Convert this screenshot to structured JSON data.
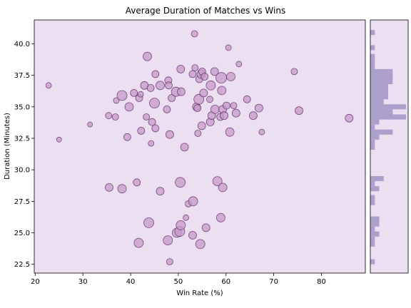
{
  "chart_data": {
    "type": "scatter",
    "title": "Average Duration of Matches vs Wins",
    "xlabel": "Win Rate (%)",
    "ylabel": "Duration (Minutes)",
    "xlim": [
      19.8,
      89.2
    ],
    "ylim": [
      21.8,
      41.9
    ],
    "xticks": [
      "20",
      "30",
      "40",
      "50",
      "60",
      "70",
      "80"
    ],
    "yticks": [
      "22.5",
      "25.0",
      "27.5",
      "30.0",
      "32.5",
      "35.0",
      "37.5",
      "40.0"
    ],
    "grid": false,
    "colors": {
      "background": "#ecdff1",
      "point_fill": "#c79ac9",
      "point_stroke": "#5a2a5e",
      "histogram": "#ab9fcc"
    },
    "marginal_histogram": {
      "orientation": "horizontal",
      "axis": "y",
      "bins": [
        {
          "y0": 22.5,
          "y1": 22.9,
          "count": 1
        },
        {
          "y0": 23.9,
          "y1": 24.3,
          "count": 1
        },
        {
          "y0": 24.3,
          "y1": 24.7,
          "count": 1
        },
        {
          "y0": 24.7,
          "y1": 25.1,
          "count": 2
        },
        {
          "y0": 25.1,
          "y1": 25.5,
          "count": 1
        },
        {
          "y0": 25.5,
          "y1": 25.9,
          "count": 2
        },
        {
          "y0": 25.9,
          "y1": 26.3,
          "count": 2
        },
        {
          "y0": 27.2,
          "y1": 27.6,
          "count": 1
        },
        {
          "y0": 27.6,
          "y1": 28.0,
          "count": 1
        },
        {
          "y0": 28.3,
          "y1": 28.7,
          "count": 2
        },
        {
          "y0": 28.7,
          "y1": 29.1,
          "count": 1
        },
        {
          "y0": 29.1,
          "y1": 29.5,
          "count": 3
        },
        {
          "y0": 31.6,
          "y1": 32.0,
          "count": 1
        },
        {
          "y0": 32.0,
          "y1": 32.4,
          "count": 1
        },
        {
          "y0": 32.4,
          "y1": 32.8,
          "count": 2
        },
        {
          "y0": 32.8,
          "y1": 33.2,
          "count": 5
        },
        {
          "y0": 33.2,
          "y1": 33.6,
          "count": 1
        },
        {
          "y0": 33.6,
          "y1": 34.0,
          "count": 2
        },
        {
          "y0": 34.0,
          "y1": 34.4,
          "count": 8
        },
        {
          "y0": 34.4,
          "y1": 34.8,
          "count": 5
        },
        {
          "y0": 34.8,
          "y1": 35.2,
          "count": 8
        },
        {
          "y0": 35.2,
          "y1": 35.6,
          "count": 3
        },
        {
          "y0": 35.6,
          "y1": 36.0,
          "count": 4
        },
        {
          "y0": 36.0,
          "y1": 36.4,
          "count": 4
        },
        {
          "y0": 36.4,
          "y1": 36.8,
          "count": 4
        },
        {
          "y0": 36.8,
          "y1": 37.2,
          "count": 5
        },
        {
          "y0": 37.2,
          "y1": 37.6,
          "count": 5
        },
        {
          "y0": 37.6,
          "y1": 38.0,
          "count": 5
        },
        {
          "y0": 38.0,
          "y1": 38.4,
          "count": 1
        },
        {
          "y0": 38.4,
          "y1": 38.8,
          "count": 1
        },
        {
          "y0": 38.8,
          "y1": 39.2,
          "count": 1
        },
        {
          "y0": 39.5,
          "y1": 39.9,
          "count": 1
        },
        {
          "y0": 40.7,
          "y1": 41.1,
          "count": 1
        }
      ]
    },
    "points": [
      {
        "x": 22.8,
        "y": 36.7,
        "r": 4
      },
      {
        "x": 25.0,
        "y": 32.4,
        "r": 3.5
      },
      {
        "x": 31.5,
        "y": 33.6,
        "r": 3.5
      },
      {
        "x": 35.4,
        "y": 34.3,
        "r": 4.5
      },
      {
        "x": 36.8,
        "y": 34.2,
        "r": 4.5
      },
      {
        "x": 37.0,
        "y": 35.5,
        "r": 4
      },
      {
        "x": 38.2,
        "y": 35.9,
        "r": 7
      },
      {
        "x": 39.3,
        "y": 32.6,
        "r": 5
      },
      {
        "x": 39.7,
        "y": 35.0,
        "r": 6
      },
      {
        "x": 40.7,
        "y": 36.1,
        "r": 5
      },
      {
        "x": 41.8,
        "y": 35.7,
        "r": 5
      },
      {
        "x": 42.1,
        "y": 36.0,
        "r": 4
      },
      {
        "x": 42.2,
        "y": 33.1,
        "r": 5
      },
      {
        "x": 42.9,
        "y": 36.7,
        "r": 5.5
      },
      {
        "x": 43.3,
        "y": 34.2,
        "r": 4.5
      },
      {
        "x": 43.5,
        "y": 39.0,
        "r": 6
      },
      {
        "x": 44.2,
        "y": 36.5,
        "r": 5
      },
      {
        "x": 44.3,
        "y": 32.1,
        "r": 4
      },
      {
        "x": 44.5,
        "y": 33.8,
        "r": 5
      },
      {
        "x": 45.0,
        "y": 35.3,
        "r": 7
      },
      {
        "x": 45.2,
        "y": 33.3,
        "r": 5
      },
      {
        "x": 45.2,
        "y": 37.6,
        "r": 5
      },
      {
        "x": 46.2,
        "y": 36.7,
        "r": 6
      },
      {
        "x": 47.6,
        "y": 34.8,
        "r": 5
      },
      {
        "x": 47.9,
        "y": 37.1,
        "r": 5
      },
      {
        "x": 48.0,
        "y": 36.7,
        "r": 5
      },
      {
        "x": 48.2,
        "y": 32.8,
        "r": 5.5
      },
      {
        "x": 48.6,
        "y": 35.7,
        "r": 5
      },
      {
        "x": 49.5,
        "y": 36.2,
        "r": 6.5
      },
      {
        "x": 50.5,
        "y": 38.0,
        "r": 5.5
      },
      {
        "x": 50.6,
        "y": 36.2,
        "r": 5.5
      },
      {
        "x": 51.3,
        "y": 31.8,
        "r": 5.5
      },
      {
        "x": 53.0,
        "y": 37.6,
        "r": 5
      },
      {
        "x": 53.4,
        "y": 40.8,
        "r": 4.5
      },
      {
        "x": 53.5,
        "y": 38.1,
        "r": 4.5
      },
      {
        "x": 53.8,
        "y": 35.0,
        "r": 5.5
      },
      {
        "x": 54.0,
        "y": 34.9,
        "r": 5
      },
      {
        "x": 54.1,
        "y": 32.9,
        "r": 4.5
      },
      {
        "x": 54.3,
        "y": 35.6,
        "r": 7
      },
      {
        "x": 54.4,
        "y": 37.2,
        "r": 5
      },
      {
        "x": 54.8,
        "y": 37.6,
        "r": 6
      },
      {
        "x": 54.9,
        "y": 33.5,
        "r": 5.5
      },
      {
        "x": 55.0,
        "y": 37.8,
        "r": 5
      },
      {
        "x": 55.3,
        "y": 36.1,
        "r": 5.5
      },
      {
        "x": 55.5,
        "y": 37.4,
        "r": 5
      },
      {
        "x": 56.6,
        "y": 35.6,
        "r": 4.5
      },
      {
        "x": 56.7,
        "y": 33.8,
        "r": 5.5
      },
      {
        "x": 56.8,
        "y": 36.7,
        "r": 6.5
      },
      {
        "x": 57.0,
        "y": 34.3,
        "r": 5.5
      },
      {
        "x": 57.6,
        "y": 37.8,
        "r": 5.5
      },
      {
        "x": 57.7,
        "y": 34.8,
        "r": 6
      },
      {
        "x": 58.8,
        "y": 34.2,
        "r": 5
      },
      {
        "x": 59.0,
        "y": 37.3,
        "r": 7.5
      },
      {
        "x": 59.1,
        "y": 36.3,
        "r": 6
      },
      {
        "x": 59.3,
        "y": 34.8,
        "r": 5.5
      },
      {
        "x": 59.6,
        "y": 34.3,
        "r": 5.5
      },
      {
        "x": 60.1,
        "y": 35.1,
        "r": 5
      },
      {
        "x": 60.5,
        "y": 39.7,
        "r": 4
      },
      {
        "x": 60.8,
        "y": 33.0,
        "r": 6
      },
      {
        "x": 61.0,
        "y": 37.4,
        "r": 6
      },
      {
        "x": 61.6,
        "y": 35.1,
        "r": 4.5
      },
      {
        "x": 62.1,
        "y": 34.5,
        "r": 5.5
      },
      {
        "x": 62.7,
        "y": 38.4,
        "r": 4
      },
      {
        "x": 64.4,
        "y": 35.6,
        "r": 5
      },
      {
        "x": 65.7,
        "y": 34.3,
        "r": 5.5
      },
      {
        "x": 66.9,
        "y": 34.9,
        "r": 5.5
      },
      {
        "x": 67.5,
        "y": 33.0,
        "r": 4
      },
      {
        "x": 74.3,
        "y": 37.8,
        "r": 4.5
      },
      {
        "x": 75.3,
        "y": 34.7,
        "r": 5.5
      },
      {
        "x": 85.8,
        "y": 34.1,
        "r": 5.5
      },
      {
        "x": 35.5,
        "y": 28.6,
        "r": 5.5
      },
      {
        "x": 38.2,
        "y": 28.5,
        "r": 6
      },
      {
        "x": 41.3,
        "y": 29.0,
        "r": 5
      },
      {
        "x": 41.7,
        "y": 24.2,
        "r": 6.5
      },
      {
        "x": 43.8,
        "y": 25.8,
        "r": 7
      },
      {
        "x": 46.2,
        "y": 28.3,
        "r": 5.5
      },
      {
        "x": 47.8,
        "y": 24.4,
        "r": 6.5
      },
      {
        "x": 48.2,
        "y": 22.7,
        "r": 4.5
      },
      {
        "x": 49.7,
        "y": 25.0,
        "r": 6.5
      },
      {
        "x": 50.3,
        "y": 25.1,
        "r": 7
      },
      {
        "x": 50.4,
        "y": 29.0,
        "r": 7
      },
      {
        "x": 50.5,
        "y": 25.6,
        "r": 6.5
      },
      {
        "x": 51.6,
        "y": 26.2,
        "r": 4
      },
      {
        "x": 52.1,
        "y": 27.3,
        "r": 4.5
      },
      {
        "x": 53.0,
        "y": 24.8,
        "r": 5.5
      },
      {
        "x": 53.1,
        "y": 27.5,
        "r": 6.5
      },
      {
        "x": 54.6,
        "y": 24.1,
        "r": 6.5
      },
      {
        "x": 55.8,
        "y": 25.4,
        "r": 5.5
      },
      {
        "x": 58.2,
        "y": 29.1,
        "r": 6.5
      },
      {
        "x": 58.9,
        "y": 26.2,
        "r": 6
      },
      {
        "x": 59.3,
        "y": 28.6,
        "r": 6
      }
    ]
  }
}
